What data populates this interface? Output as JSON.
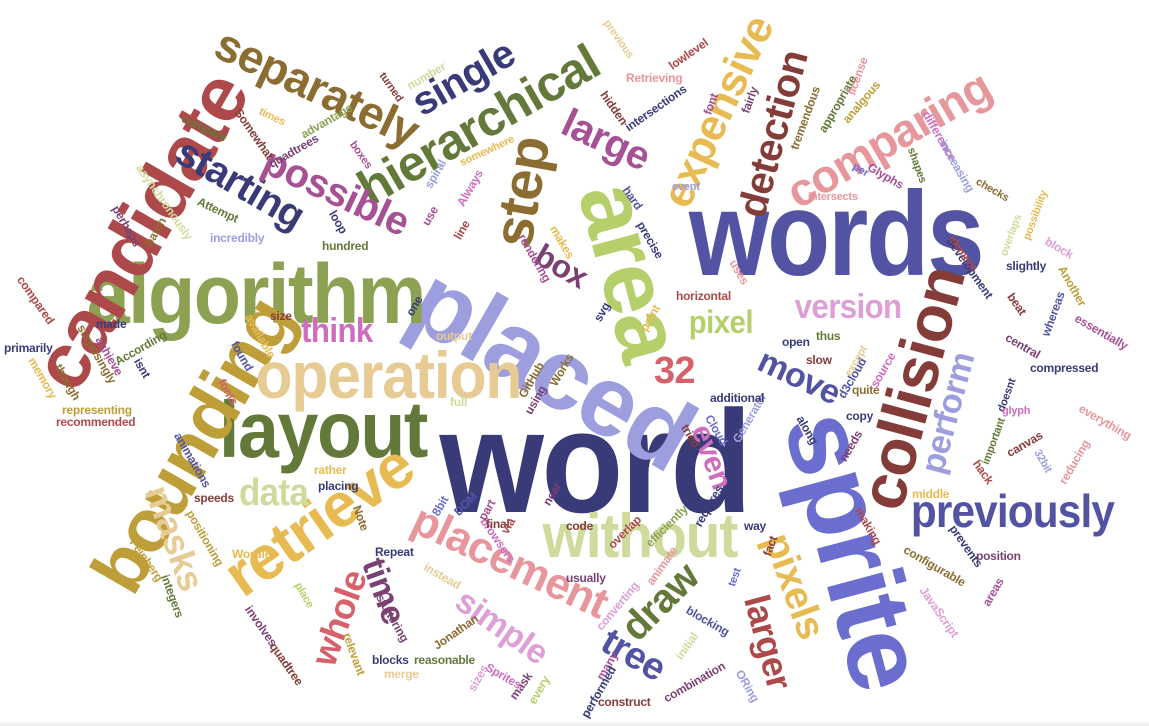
{
  "palette": {
    "navy": "#393b79",
    "indigo": "#5254a3",
    "periwinkle": "#6b6ecf",
    "lavender": "#9c9ede",
    "olive": "#637939",
    "green": "#8ca252",
    "lime": "#b5cf6b",
    "sage": "#cedb9c",
    "brown": "#8c6d31",
    "gold": "#bd9e39",
    "mustard": "#e7ba52",
    "sand": "#e7cb94",
    "maroon": "#843c39",
    "red": "#ad494a",
    "rose": "#d6616b",
    "pink": "#e7969c",
    "plum": "#7b4173",
    "magenta": "#a55194",
    "orchid": "#ce6dbd",
    "lilac": "#de9ed6"
  },
  "words": [
    {
      "text": "word",
      "color": "#393b79"
    },
    {
      "text": "words",
      "color": "#5254a3"
    },
    {
      "text": "sprite",
      "color": "#6b6ecf"
    },
    {
      "text": "placed",
      "color": "#9c9ede"
    },
    {
      "text": "area",
      "color": "#b5cf6b"
    },
    {
      "text": "algorithm",
      "color": "#8ca252"
    },
    {
      "text": "layout",
      "color": "#637939"
    },
    {
      "text": "candidate",
      "color": "#ad494a"
    },
    {
      "text": "bounding",
      "color": "#bd9e39"
    },
    {
      "text": "operation",
      "color": "#e7cb94"
    },
    {
      "text": "collision",
      "color": "#843c39"
    },
    {
      "text": "retrieve",
      "color": "#e7ba52"
    },
    {
      "text": "without",
      "color": "#cedb9c"
    },
    {
      "text": "step",
      "color": "#8c6d31"
    },
    {
      "text": "hierarchical",
      "color": "#637939"
    },
    {
      "text": "separately",
      "color": "#8c6d31"
    },
    {
      "text": "previously",
      "color": "#5254a3"
    },
    {
      "text": "comparing",
      "color": "#e7969c"
    },
    {
      "text": "placement",
      "color": "#e7969c"
    },
    {
      "text": "expensive",
      "color": "#e7ba52"
    },
    {
      "text": "detection",
      "color": "#843c39"
    },
    {
      "text": "starting",
      "color": "#393b79"
    },
    {
      "text": "possible",
      "color": "#a55194"
    },
    {
      "text": "single",
      "color": "#393b79"
    },
    {
      "text": "large",
      "color": "#a55194"
    },
    {
      "text": "version",
      "color": "#de9ed6"
    },
    {
      "text": "pixels",
      "color": "#e7ba52"
    },
    {
      "text": "larger",
      "color": "#ad494a"
    },
    {
      "text": "perform",
      "color": "#9c9ede"
    },
    {
      "text": "simple",
      "color": "#de9ed6"
    },
    {
      "text": "masks",
      "color": "#e7cb94"
    },
    {
      "text": "whole",
      "color": "#d6616b"
    },
    {
      "text": "time",
      "color": "#7b4173"
    },
    {
      "text": "tree",
      "color": "#5254a3"
    },
    {
      "text": "draw",
      "color": "#637939"
    },
    {
      "text": "move",
      "color": "#5254a3"
    },
    {
      "text": "data",
      "color": "#cedb9c"
    },
    {
      "text": "think",
      "color": "#ce6dbd"
    },
    {
      "text": "pixel",
      "color": "#b5cf6b"
    },
    {
      "text": "even",
      "color": "#ce6dbd"
    },
    {
      "text": "box",
      "color": "#7b4173"
    },
    {
      "text": "32",
      "color": "#d6616b"
    },
    {
      "text": "compare",
      "color": "#637939"
    },
    {
      "text": "Somewhat",
      "color": "#843c39"
    },
    {
      "text": "times",
      "color": "#e7ba52"
    },
    {
      "text": "advantage",
      "color": "#8ca252"
    },
    {
      "text": "quadtrees",
      "color": "#7b4173"
    },
    {
      "text": "boxes",
      "color": "#a55194"
    },
    {
      "text": "somewhere",
      "color": "#e7ba52"
    },
    {
      "text": "turned",
      "color": "#843c39"
    },
    {
      "text": "number",
      "color": "#cedb9c"
    },
    {
      "text": "previous",
      "color": "#e7cb94"
    },
    {
      "text": "lowlevel",
      "color": "#ad494a"
    },
    {
      "text": "Retrieving",
      "color": "#e7969c"
    },
    {
      "text": "hidden",
      "color": "#843c39"
    },
    {
      "text": "intersections",
      "color": "#393b79"
    },
    {
      "text": "font",
      "color": "#a55194"
    },
    {
      "text": "fairly",
      "color": "#7b4173"
    },
    {
      "text": "tremendous",
      "color": "#8c6d31"
    },
    {
      "text": "appropriate",
      "color": "#637939"
    },
    {
      "text": "analgous",
      "color": "#bd9e39"
    },
    {
      "text": "license",
      "color": "#e7969c"
    },
    {
      "text": "difference",
      "color": "#ce6dbd"
    },
    {
      "text": "increasing",
      "color": "#9c9ede"
    },
    {
      "text": "shapes",
      "color": "#637939"
    },
    {
      "text": "Glyphs",
      "color": "#a55194"
    },
    {
      "text": "per",
      "color": "#6b6ecf"
    },
    {
      "text": "intersects",
      "color": "#e7969c"
    },
    {
      "text": "checks",
      "color": "#8c6d31"
    },
    {
      "text": "development",
      "color": "#393b79"
    },
    {
      "text": "element",
      "color": "#ad494a"
    },
    {
      "text": "overlaps",
      "color": "#cedb9c"
    },
    {
      "text": "possibility",
      "color": "#e7ba52"
    },
    {
      "text": "block",
      "color": "#de9ed6"
    },
    {
      "text": "slightly",
      "color": "#393b79"
    },
    {
      "text": "Another",
      "color": "#bd9e39"
    },
    {
      "text": "beat",
      "color": "#843c39"
    },
    {
      "text": "whereas",
      "color": "#5254a3"
    },
    {
      "text": "essentially",
      "color": "#a55194"
    },
    {
      "text": "central",
      "color": "#7b4173"
    },
    {
      "text": "compressed",
      "color": "#393b79"
    },
    {
      "text": "everything",
      "color": "#e7969c"
    },
    {
      "text": "doesnt",
      "color": "#393b79"
    },
    {
      "text": "glyph",
      "color": "#ce6dbd"
    },
    {
      "text": "important",
      "color": "#637939"
    },
    {
      "text": "canvas",
      "color": "#843c39"
    },
    {
      "text": "reducing",
      "color": "#e7969c"
    },
    {
      "text": "32bit",
      "color": "#9c9ede"
    },
    {
      "text": "hack",
      "color": "#ad494a"
    },
    {
      "text": "middle",
      "color": "#e7ba52"
    },
    {
      "text": "position",
      "color": "#7b4173"
    },
    {
      "text": "prevents",
      "color": "#393b79"
    },
    {
      "text": "configurable",
      "color": "#8c6d31"
    },
    {
      "text": "JavaScript",
      "color": "#de9ed6"
    },
    {
      "text": "areas",
      "color": "#a55194"
    },
    {
      "text": "test",
      "color": "#6b6ecf"
    },
    {
      "text": "fact",
      "color": "#843c39"
    },
    {
      "text": "way",
      "color": "#393b79"
    },
    {
      "text": "making",
      "color": "#ad494a"
    },
    {
      "text": "animate",
      "color": "#e7969c"
    },
    {
      "text": "usually",
      "color": "#7b4173"
    },
    {
      "text": "converting",
      "color": "#de9ed6"
    },
    {
      "text": "initial",
      "color": "#cedb9c"
    },
    {
      "text": "blocking",
      "color": "#5254a3"
    },
    {
      "text": "combination",
      "color": "#7b4173"
    },
    {
      "text": "ORing",
      "color": "#9c9ede"
    },
    {
      "text": "many",
      "color": "#a55194"
    },
    {
      "text": "performed",
      "color": "#393b79"
    },
    {
      "text": "construct",
      "color": "#843c39"
    },
    {
      "text": "every",
      "color": "#b5cf6b"
    },
    {
      "text": "mask",
      "color": "#7b4173"
    },
    {
      "text": "Sprites",
      "color": "#ce6dbd"
    },
    {
      "text": "sizes",
      "color": "#de9ed6"
    },
    {
      "text": "Jonathan",
      "color": "#8c6d31"
    },
    {
      "text": "reasonable",
      "color": "#637939"
    },
    {
      "text": "merge",
      "color": "#e7cb94"
    },
    {
      "text": "blocks",
      "color": "#393b79"
    },
    {
      "text": "stuttering",
      "color": "#7b4173"
    },
    {
      "text": "relevant",
      "color": "#bd9e39"
    },
    {
      "text": "quadtree",
      "color": "#843c39"
    },
    {
      "text": "involves",
      "color": "#7b4173"
    },
    {
      "text": "place",
      "color": "#b5cf6b"
    },
    {
      "text": "Wordle",
      "color": "#e7ba52"
    },
    {
      "text": "positioning",
      "color": "#bd9e39"
    },
    {
      "text": "integers",
      "color": "#637939"
    },
    {
      "text": "Feinberg",
      "color": "#bd9e39"
    },
    {
      "text": "speeds",
      "color": "#843c39"
    },
    {
      "text": "animations",
      "color": "#5254a3"
    },
    {
      "text": "rather",
      "color": "#e7ba52"
    },
    {
      "text": "placing",
      "color": "#393b79"
    },
    {
      "text": "Note",
      "color": "#8c6d31"
    },
    {
      "text": "Repeat",
      "color": "#393b79"
    },
    {
      "text": "instead",
      "color": "#e7cb94"
    },
    {
      "text": "browsers",
      "color": "#ce6dbd"
    },
    {
      "text": "final",
      "color": "#843c39"
    },
    {
      "text": "part",
      "color": "#a55194"
    },
    {
      "text": "via",
      "color": "#ad494a"
    },
    {
      "text": "code",
      "color": "#843c39"
    },
    {
      "text": "overlap",
      "color": "#ad494a"
    },
    {
      "text": "efficiently",
      "color": "#8ca252"
    },
    {
      "text": "requires",
      "color": "#393b79"
    },
    {
      "text": "text",
      "color": "#393b79"
    },
    {
      "text": "8bit",
      "color": "#6b6ecf"
    },
    {
      "text": "DOM",
      "color": "#5254a3"
    },
    {
      "text": "near",
      "color": "#7b4173"
    },
    {
      "text": "fonts",
      "color": "#d6616b"
    },
    {
      "text": "found",
      "color": "#5254a3"
    },
    {
      "text": "available",
      "color": "#e7ba52"
    },
    {
      "text": "size",
      "color": "#843c39"
    },
    {
      "text": "Works",
      "color": "#8c6d31"
    },
    {
      "text": "GitHub",
      "color": "#8c6d31"
    },
    {
      "text": "using",
      "color": "#7b4173"
    },
    {
      "text": "full",
      "color": "#cedb9c"
    },
    {
      "text": "output",
      "color": "#e7cb94"
    },
    {
      "text": "one",
      "color": "#393b79"
    },
    {
      "text": "svg",
      "color": "#393b79"
    },
    {
      "text": "point",
      "color": "#e7ba52"
    },
    {
      "text": "uses",
      "color": "#e7969c"
    },
    {
      "text": "horizontal",
      "color": "#ad494a"
    },
    {
      "text": "open",
      "color": "#393b79"
    },
    {
      "text": "thus",
      "color": "#637939"
    },
    {
      "text": "slow",
      "color": "#843c39"
    },
    {
      "text": "d3cloud",
      "color": "#5254a3"
    },
    {
      "text": "except",
      "color": "#e7cb94"
    },
    {
      "text": "source",
      "color": "#ce6dbd"
    },
    {
      "text": "copy",
      "color": "#393b79"
    },
    {
      "text": "quite",
      "color": "#8c6d31"
    },
    {
      "text": "needs",
      "color": "#7b4173"
    },
    {
      "text": "along",
      "color": "#393b79"
    },
    {
      "text": "Generator",
      "color": "#9c9ede"
    },
    {
      "text": "additional",
      "color": "#393b79"
    },
    {
      "text": "Cloud",
      "color": "#6b6ecf"
    },
    {
      "text": "tried",
      "color": "#843c39"
    },
    {
      "text": "precise",
      "color": "#393b79"
    },
    {
      "text": "hard",
      "color": "#5254a3"
    },
    {
      "text": "event",
      "color": "#9c9ede"
    },
    {
      "text": "makes",
      "color": "#e7ba52"
    },
    {
      "text": "rendering",
      "color": "#a55194"
    },
    {
      "text": "line",
      "color": "#ad494a"
    },
    {
      "text": "use",
      "color": "#a55194"
    },
    {
      "text": "spiral",
      "color": "#9c9ede"
    },
    {
      "text": "Always",
      "color": "#ce6dbd"
    },
    {
      "text": "loop",
      "color": "#393b79"
    },
    {
      "text": "hundred",
      "color": "#637939"
    },
    {
      "text": "incredibly",
      "color": "#9c9ede"
    },
    {
      "text": "Attempt",
      "color": "#637939"
    },
    {
      "text": "asynchronously",
      "color": "#cedb9c"
    },
    {
      "text": "batch",
      "color": "#8c6d31"
    },
    {
      "text": "perhaps",
      "color": "#7b4173"
    },
    {
      "text": "compared",
      "color": "#ad494a"
    },
    {
      "text": "surprisingly",
      "color": "#8c6d31"
    },
    {
      "text": "made",
      "color": "#393b79"
    },
    {
      "text": "According",
      "color": "#637939"
    },
    {
      "text": "isnt",
      "color": "#393b79"
    },
    {
      "text": "achieve",
      "color": "#a55194"
    },
    {
      "text": "primarily",
      "color": "#393b79"
    },
    {
      "text": "memory",
      "color": "#e7ba52"
    },
    {
      "text": "though",
      "color": "#8c6d31"
    },
    {
      "text": "representing",
      "color": "#bd9e39"
    },
    {
      "text": "recommended",
      "color": "#ad494a"
    }
  ]
}
